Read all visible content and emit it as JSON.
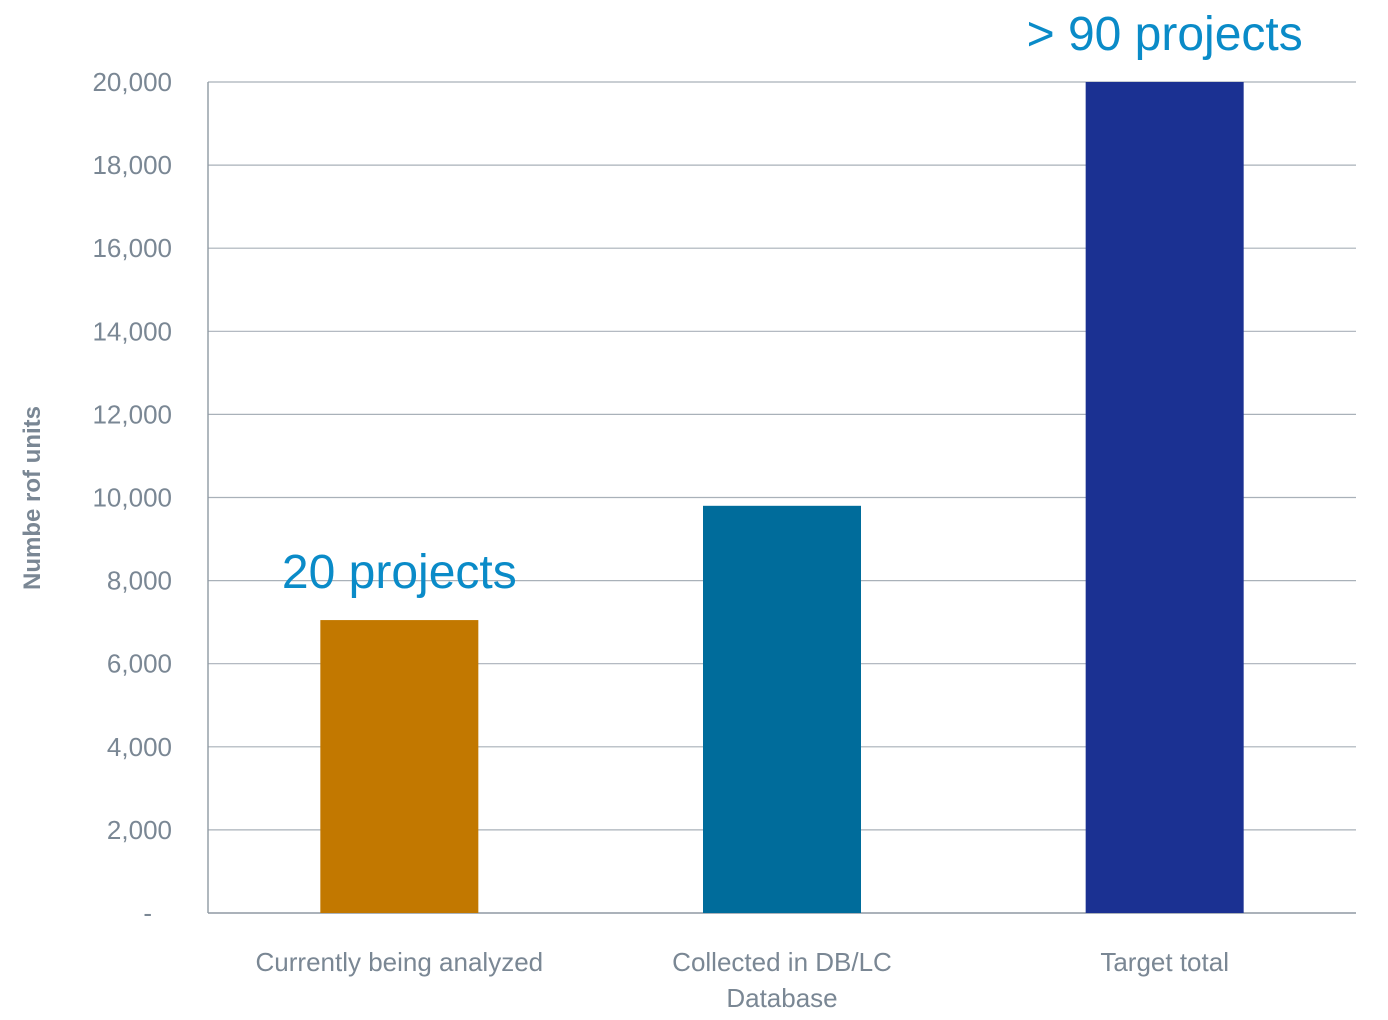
{
  "chart_data": {
    "type": "bar",
    "categories": [
      [
        "Currently being analyzed"
      ],
      [
        "Collected in DB/LC",
        "Database"
      ],
      [
        "Target total"
      ]
    ],
    "values": [
      7050,
      9800,
      20000
    ],
    "bar_colors": [
      "#c27800",
      "#006c9b",
      "#1b3192"
    ],
    "ylabel": "Numbe rof units",
    "ylim": [
      0,
      20000
    ],
    "yticks": [
      {
        "value": 0,
        "label": "-"
      },
      {
        "value": 2000,
        "label": "2,000"
      },
      {
        "value": 4000,
        "label": "4,000"
      },
      {
        "value": 6000,
        "label": "6,000"
      },
      {
        "value": 8000,
        "label": "8,000"
      },
      {
        "value": 10000,
        "label": "10,000"
      },
      {
        "value": 12000,
        "label": "12,000"
      },
      {
        "value": 14000,
        "label": "14,000"
      },
      {
        "value": 16000,
        "label": "16,000"
      },
      {
        "value": 18000,
        "label": "18,000"
      },
      {
        "value": 20000,
        "label": "20,000"
      }
    ],
    "grid": true,
    "annotations": [
      {
        "text": "20 projects",
        "category_index": 0
      },
      {
        "text": "> 90 projects",
        "category_index": 2
      }
    ],
    "annotation_color": "#0a8bc8"
  }
}
